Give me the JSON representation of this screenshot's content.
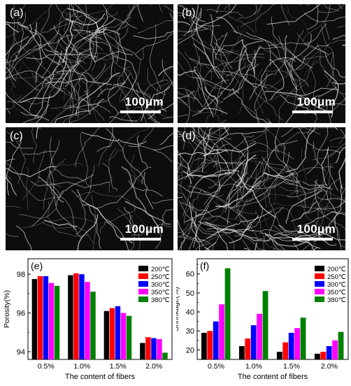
{
  "micrographs": [
    {
      "label": "(a)",
      "scale": "100μm"
    },
    {
      "label": "(b)",
      "scale": "100μm"
    },
    {
      "label": "(c)",
      "scale": "100μm"
    },
    {
      "label": "(d)",
      "scale": "100μm"
    }
  ],
  "chart_data": [
    {
      "type": "bar",
      "panel_label": "(e)",
      "title": "",
      "xlabel": "The content of fibers",
      "ylabel": "Porosity(%)",
      "categories": [
        "0.5%",
        "1.0%",
        "1.5%",
        "2.0%"
      ],
      "ylim": [
        93.6,
        98.8
      ],
      "yticks": [
        94,
        96,
        98
      ],
      "legend_position": "top-right",
      "series": [
        {
          "name": "200℃",
          "color": "#000000",
          "values": [
            97.75,
            97.95,
            96.1,
            94.45
          ]
        },
        {
          "name": "250℃",
          "color": "#ff0000",
          "values": [
            97.9,
            98.05,
            96.25,
            94.75
          ]
        },
        {
          "name": "300℃",
          "color": "#0000ff",
          "values": [
            97.9,
            98.0,
            96.35,
            94.7
          ]
        },
        {
          "name": "350℃",
          "color": "#ff00ff",
          "values": [
            97.55,
            97.6,
            96.0,
            94.65
          ]
        },
        {
          "name": "380℃",
          "color": "#008000",
          "values": [
            97.4,
            97.1,
            95.85,
            93.95
          ]
        }
      ]
    },
    {
      "type": "bar",
      "panel_label": "(f)",
      "title": "",
      "xlabel": "The content of fibers",
      "ylabel": "Shrinkage(%)",
      "categories": [
        "0.5%",
        "1.0%",
        "1.5%",
        "2.0%"
      ],
      "ylim": [
        15,
        68
      ],
      "yticks": [
        20,
        30,
        40,
        50,
        60
      ],
      "legend_position": "top-right",
      "series": [
        {
          "name": "200℃",
          "color": "#000000",
          "values": [
            29,
            22,
            19,
            18
          ]
        },
        {
          "name": "250℃",
          "color": "#ff0000",
          "values": [
            30,
            26,
            24,
            19
          ]
        },
        {
          "name": "300℃",
          "color": "#0000ff",
          "values": [
            35,
            33,
            29,
            22
          ]
        },
        {
          "name": "350℃",
          "color": "#ff00ff",
          "values": [
            44,
            39,
            31.5,
            25
          ]
        },
        {
          "name": "380℃",
          "color": "#008000",
          "values": [
            63,
            51,
            37,
            29.5
          ]
        }
      ]
    }
  ]
}
